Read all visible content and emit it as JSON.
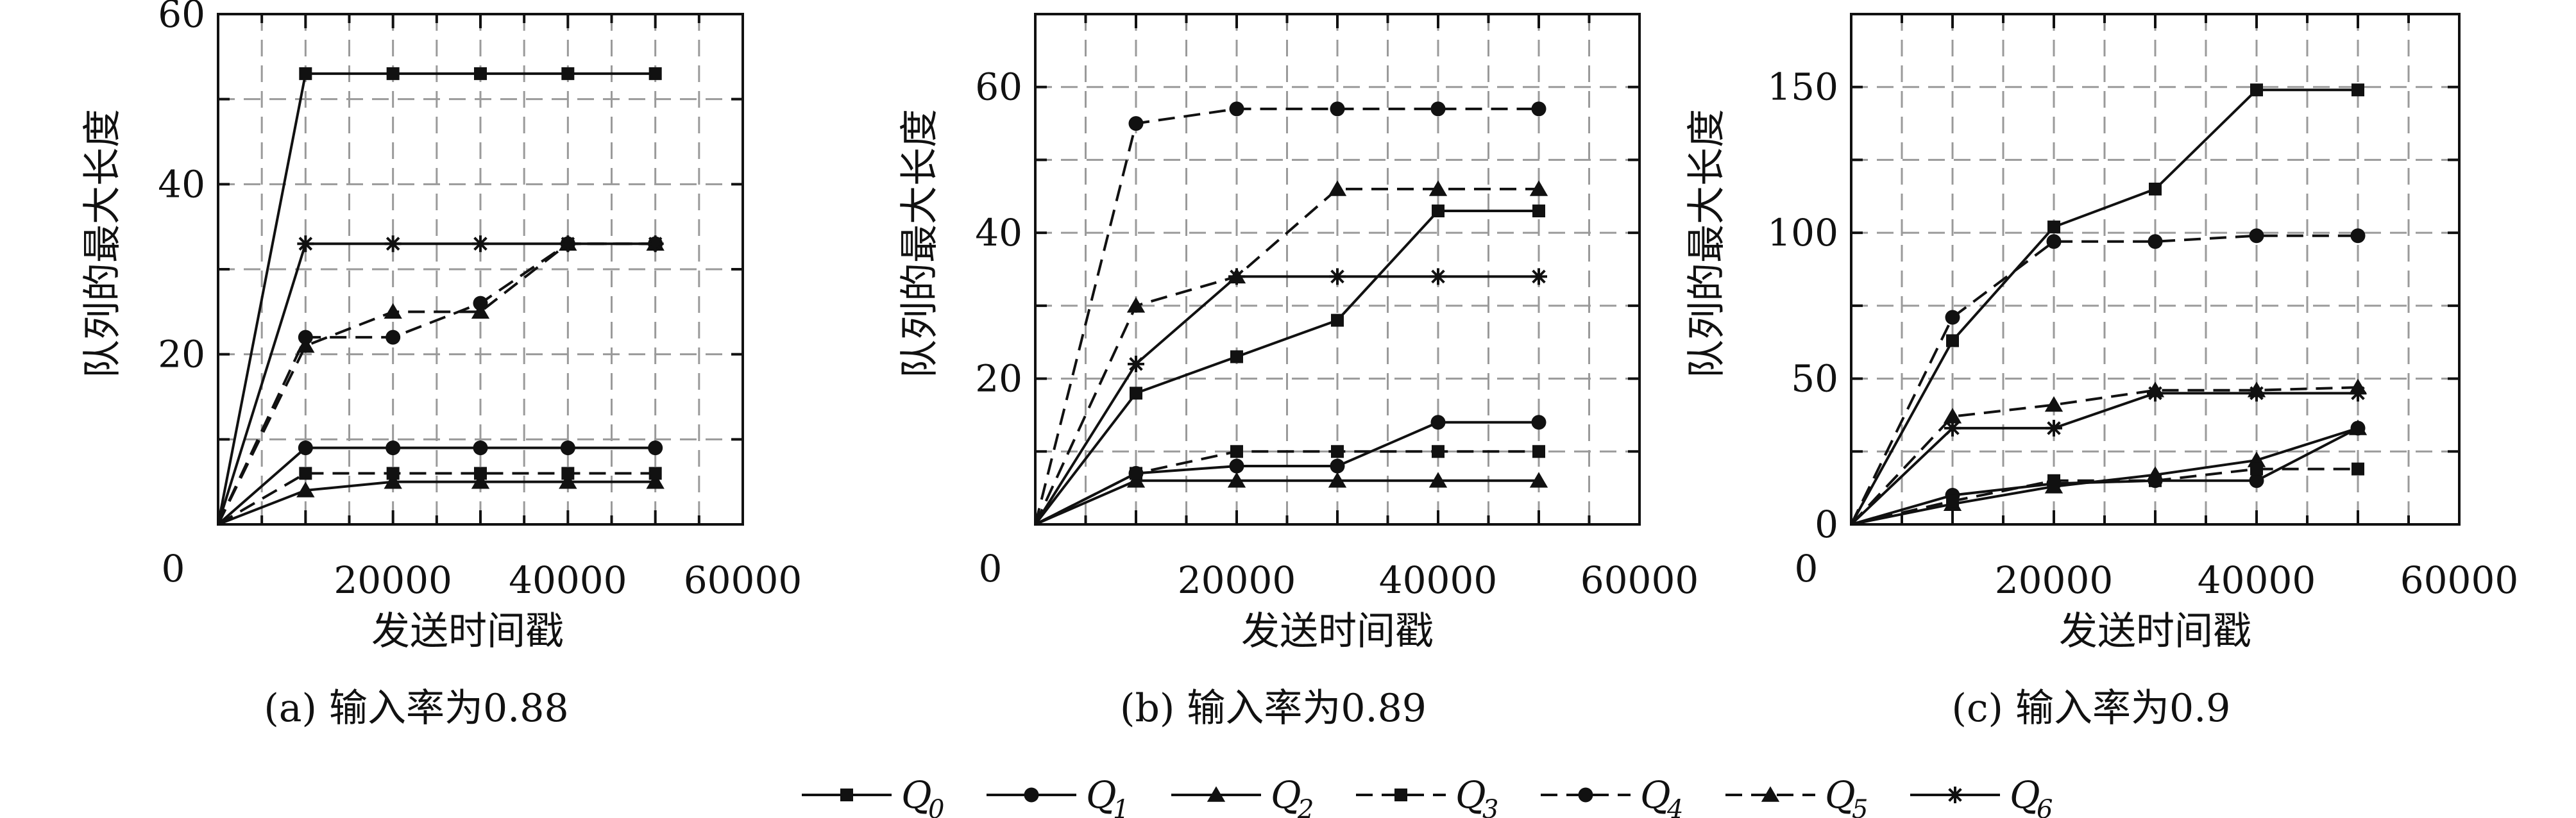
{
  "legend": [
    {
      "main": "Q",
      "sub": "0"
    },
    {
      "main": "Q",
      "sub": "1"
    },
    {
      "main": "Q",
      "sub": "2"
    },
    {
      "main": "Q",
      "sub": "3"
    },
    {
      "main": "Q",
      "sub": "4"
    },
    {
      "main": "Q",
      "sub": "5"
    },
    {
      "main": "Q",
      "sub": "6"
    }
  ],
  "legend_styles": [
    {
      "marker": "square",
      "dashed": false
    },
    {
      "marker": "circle",
      "dashed": false
    },
    {
      "marker": "triangle",
      "dashed": false
    },
    {
      "marker": "square",
      "dashed": true
    },
    {
      "marker": "circle",
      "dashed": true
    },
    {
      "marker": "triangle",
      "dashed": true
    },
    {
      "marker": "star",
      "dashed": false
    }
  ],
  "chart_data": [
    {
      "type": "line",
      "caption": "(a) 输入率为0.88",
      "xlabel": "发送时间戳",
      "ylabel": "队列的最大长度",
      "xlim": [
        0,
        60000
      ],
      "ylim": [
        0,
        60
      ],
      "xticks": [
        0,
        20000,
        40000,
        60000
      ],
      "yticks": [
        20,
        40,
        60
      ],
      "grid": true,
      "series": [
        {
          "name": "Q0",
          "x": [
            0,
            10000,
            20000,
            30000,
            40000,
            50000
          ],
          "y": [
            0,
            53,
            53,
            53,
            53,
            53
          ]
        },
        {
          "name": "Q1",
          "x": [
            0,
            10000,
            20000,
            30000,
            40000,
            50000
          ],
          "y": [
            0,
            9,
            9,
            9,
            9,
            9
          ]
        },
        {
          "name": "Q2",
          "x": [
            0,
            10000,
            20000,
            30000,
            40000,
            50000
          ],
          "y": [
            0,
            4,
            5,
            5,
            5,
            5
          ]
        },
        {
          "name": "Q3",
          "x": [
            0,
            10000,
            20000,
            30000,
            40000,
            50000
          ],
          "y": [
            0,
            6,
            6,
            6,
            6,
            6
          ]
        },
        {
          "name": "Q4",
          "x": [
            0,
            10000,
            20000,
            30000,
            40000,
            50000
          ],
          "y": [
            0,
            22,
            22,
            26,
            33,
            33
          ]
        },
        {
          "name": "Q5",
          "x": [
            0,
            10000,
            20000,
            30000,
            40000,
            50000
          ],
          "y": [
            0,
            21,
            25,
            25,
            33,
            33
          ]
        },
        {
          "name": "Q6",
          "x": [
            0,
            10000,
            20000,
            30000,
            40000,
            50000
          ],
          "y": [
            0,
            33,
            33,
            33,
            33,
            33
          ]
        }
      ]
    },
    {
      "type": "line",
      "caption": "(b) 输入率为0.89",
      "xlabel": "发送时间戳",
      "ylabel": "队列的最大长度",
      "xlim": [
        0,
        60000
      ],
      "ylim": [
        0,
        70
      ],
      "xticks": [
        0,
        20000,
        40000,
        60000
      ],
      "yticks": [
        20,
        40,
        60
      ],
      "grid": true,
      "series": [
        {
          "name": "Q0",
          "x": [
            0,
            10000,
            20000,
            30000,
            40000,
            50000
          ],
          "y": [
            0,
            18,
            23,
            28,
            43,
            43
          ]
        },
        {
          "name": "Q1",
          "x": [
            0,
            10000,
            20000,
            30000,
            40000,
            50000
          ],
          "y": [
            0,
            7,
            8,
            8,
            14,
            14
          ]
        },
        {
          "name": "Q2",
          "x": [
            0,
            10000,
            20000,
            30000,
            40000,
            50000
          ],
          "y": [
            0,
            6,
            6,
            6,
            6,
            6
          ]
        },
        {
          "name": "Q3",
          "x": [
            0,
            10000,
            20000,
            30000,
            40000,
            50000
          ],
          "y": [
            0,
            7,
            10,
            10,
            10,
            10
          ]
        },
        {
          "name": "Q4",
          "x": [
            0,
            10000,
            20000,
            30000,
            40000,
            50000
          ],
          "y": [
            0,
            55,
            57,
            57,
            57,
            57
          ]
        },
        {
          "name": "Q5",
          "x": [
            0,
            10000,
            20000,
            30000,
            40000,
            50000
          ],
          "y": [
            0,
            30,
            34,
            46,
            46,
            46
          ]
        },
        {
          "name": "Q6",
          "x": [
            0,
            10000,
            20000,
            30000,
            40000,
            50000
          ],
          "y": [
            0,
            22,
            34,
            34,
            34,
            34
          ]
        }
      ]
    },
    {
      "type": "line",
      "caption": "(c) 输入率为0.9",
      "xlabel": "发送时间戳",
      "ylabel": "队列的最大长度",
      "xlim": [
        0,
        60000
      ],
      "ylim": [
        0,
        175
      ],
      "xticks": [
        0,
        20000,
        40000,
        60000
      ],
      "yticks": [
        0,
        50,
        100,
        150
      ],
      "grid": true,
      "series": [
        {
          "name": "Q0",
          "x": [
            0,
            10000,
            20000,
            30000,
            40000,
            50000
          ],
          "y": [
            0,
            63,
            102,
            115,
            149,
            149
          ]
        },
        {
          "name": "Q1",
          "x": [
            0,
            10000,
            20000,
            30000,
            40000,
            50000
          ],
          "y": [
            0,
            10,
            14,
            15,
            15,
            33
          ]
        },
        {
          "name": "Q2",
          "x": [
            0,
            10000,
            20000,
            30000,
            40000,
            50000
          ],
          "y": [
            0,
            7,
            13,
            17,
            22,
            33
          ]
        },
        {
          "name": "Q3",
          "x": [
            0,
            10000,
            20000,
            30000,
            40000,
            50000
          ],
          "y": [
            0,
            8,
            15,
            15,
            19,
            19
          ]
        },
        {
          "name": "Q4",
          "x": [
            0,
            10000,
            20000,
            30000,
            40000,
            50000
          ],
          "y": [
            0,
            71,
            97,
            97,
            99,
            99
          ]
        },
        {
          "name": "Q5",
          "x": [
            0,
            10000,
            20000,
            30000,
            40000,
            50000
          ],
          "y": [
            0,
            37,
            41,
            46,
            46,
            47
          ]
        },
        {
          "name": "Q6",
          "x": [
            0,
            10000,
            20000,
            30000,
            40000,
            50000
          ],
          "y": [
            0,
            33,
            33,
            45,
            45,
            45
          ]
        }
      ]
    }
  ]
}
